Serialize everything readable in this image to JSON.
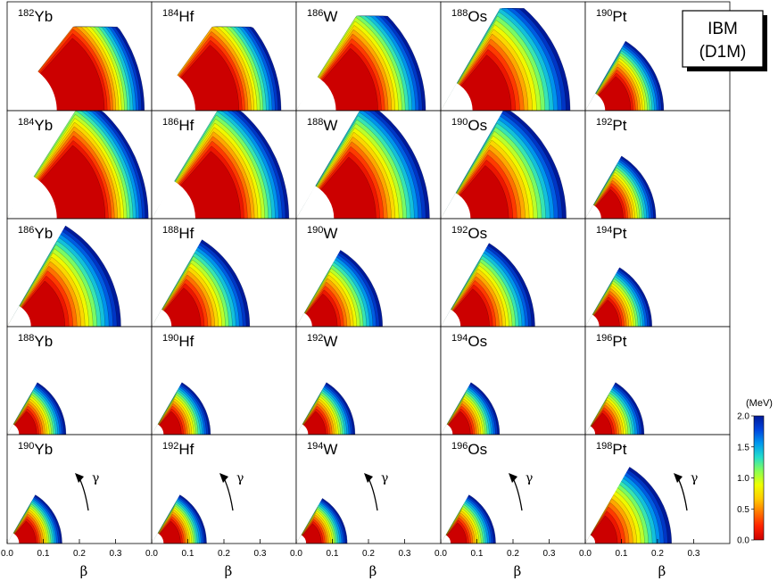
{
  "title_box": {
    "line1": "IBM",
    "line2": "(D1M)"
  },
  "x_axis": {
    "label": "β",
    "ticks": [
      "0.0",
      "0.1",
      "0.2",
      "0.3"
    ],
    "range": [
      0.0,
      0.4
    ]
  },
  "colorbar": {
    "unit": "(MeV)",
    "ticks": [
      "2.0",
      "1.5",
      "1.0",
      "0.5",
      "0.0"
    ],
    "range": [
      0.0,
      2.0
    ],
    "colormap": [
      "#cc0000",
      "#ff2200",
      "#ff7700",
      "#ffcc00",
      "#eeff00",
      "#88ff55",
      "#22ddcc",
      "#0099ee",
      "#0044dd",
      "#001a99"
    ]
  },
  "gamma_label": "γ",
  "chart_data": {
    "type": "heatmap",
    "description_of_axes": "polar (beta, gamma) plane, gamma 0-60 deg",
    "xlabel": "β",
    "colorbar_label": "(MeV)",
    "panels": [
      [
        {
          "mass": "182",
          "symbol": "Yb",
          "beta_min": 0.25,
          "beta_max": 0.35,
          "gamma_min": 0.3,
          "gamma_max": 0.6,
          "trunc_top": 0.82
        },
        {
          "mass": "184",
          "symbol": "Hf",
          "beta_min": 0.22,
          "beta_max": 0.33,
          "gamma_min": 0.3,
          "gamma_max": 0.6,
          "trunc_top": 0.82
        },
        {
          "mass": "186",
          "symbol": "W",
          "beta_min": 0.2,
          "beta_max": 0.33,
          "gamma_min": 0.3,
          "gamma_max": 0.65,
          "trunc_top": 0.92
        },
        {
          "mass": "188",
          "symbol": "Os",
          "beta_min": 0.16,
          "beta_max": 0.33,
          "gamma_min": 0.3,
          "gamma_max": 0.8,
          "trunc_top": 0.99
        },
        {
          "mass": "190",
          "symbol": "Pt",
          "beta_min": 0.1,
          "beta_max": 0.2,
          "gamma_min": 0.6,
          "gamma_max": 0.9,
          "trunc_top": 1.05
        }
      ],
      [
        {
          "mass": "184",
          "symbol": "Yb",
          "beta_min": 0.25,
          "beta_max": 0.36,
          "gamma_min": 0.3,
          "gamma_max": 0.9,
          "trunc_top": 1.05
        },
        {
          "mass": "186",
          "symbol": "Hf",
          "beta_min": 0.22,
          "beta_max": 0.35,
          "gamma_min": 0.3,
          "gamma_max": 0.9,
          "trunc_top": 1.05
        },
        {
          "mass": "188",
          "symbol": "W",
          "beta_min": 0.19,
          "beta_max": 0.34,
          "gamma_min": 0.3,
          "gamma_max": 0.85,
          "trunc_top": 1.05
        },
        {
          "mass": "190",
          "symbol": "Os",
          "beta_min": 0.15,
          "beta_max": 0.32,
          "gamma_min": 0.4,
          "gamma_max": 0.8,
          "trunc_top": 1.05
        },
        {
          "mass": "192",
          "symbol": "Pt",
          "beta_min": 0.08,
          "beta_max": 0.18,
          "gamma_min": 0.6,
          "gamma_max": 0.9,
          "trunc_top": 1.05
        }
      ],
      [
        {
          "mass": "186",
          "symbol": "Yb",
          "beta_min": 0.12,
          "beta_max": 0.29,
          "gamma_min": 0.5,
          "gamma_max": 0.8,
          "trunc_top": 1.05
        },
        {
          "mass": "188",
          "symbol": "Hf",
          "beta_min": 0.1,
          "beta_max": 0.25,
          "gamma_min": 0.55,
          "gamma_max": 0.85,
          "trunc_top": 1.05
        },
        {
          "mass": "190",
          "symbol": "W",
          "beta_min": 0.08,
          "beta_max": 0.22,
          "gamma_min": 0.6,
          "gamma_max": 0.85,
          "trunc_top": 1.05
        },
        {
          "mass": "192",
          "symbol": "Os",
          "beta_min": 0.1,
          "beta_max": 0.24,
          "gamma_min": 0.6,
          "gamma_max": 0.7,
          "trunc_top": 1.05
        },
        {
          "mass": "194",
          "symbol": "Pt",
          "beta_min": 0.07,
          "beta_max": 0.17,
          "gamma_min": 0.6,
          "gamma_max": 0.9,
          "trunc_top": 1.05
        }
      ],
      [
        {
          "mass": "188",
          "symbol": "Yb",
          "beta_min": 0.06,
          "beta_max": 0.15,
          "gamma_min": 0.6,
          "gamma_max": 0.9,
          "trunc_top": 1.05
        },
        {
          "mass": "190",
          "symbol": "Hf",
          "beta_min": 0.06,
          "beta_max": 0.15,
          "gamma_min": 0.6,
          "gamma_max": 0.9,
          "trunc_top": 1.05
        },
        {
          "mass": "192",
          "symbol": "W",
          "beta_min": 0.06,
          "beta_max": 0.15,
          "gamma_min": 0.6,
          "gamma_max": 0.9,
          "trunc_top": 1.05
        },
        {
          "mass": "194",
          "symbol": "Os",
          "beta_min": 0.06,
          "beta_max": 0.15,
          "gamma_min": 0.6,
          "gamma_max": 0.9,
          "trunc_top": 1.05
        },
        {
          "mass": "196",
          "symbol": "Pt",
          "beta_min": 0.05,
          "beta_max": 0.15,
          "gamma_min": 0.6,
          "gamma_max": 0.9,
          "trunc_top": 1.05
        }
      ],
      [
        {
          "mass": "190",
          "symbol": "Yb",
          "beta_min": 0.06,
          "beta_max": 0.14,
          "gamma_min": 0.6,
          "gamma_max": 0.9,
          "trunc_top": 1.05
        },
        {
          "mass": "192",
          "symbol": "Hf",
          "beta_min": 0.06,
          "beta_max": 0.14,
          "gamma_min": 0.6,
          "gamma_max": 0.9,
          "trunc_top": 1.05
        },
        {
          "mass": "194",
          "symbol": "W",
          "beta_min": 0.05,
          "beta_max": 0.13,
          "gamma_min": 0.6,
          "gamma_max": 0.9,
          "trunc_top": 1.05
        },
        {
          "mass": "196",
          "symbol": "Os",
          "beta_min": 0.05,
          "beta_max": 0.14,
          "gamma_min": 0.6,
          "gamma_max": 0.9,
          "trunc_top": 1.05
        },
        {
          "mass": "198",
          "symbol": "Pt",
          "beta_min": 0.05,
          "beta_max": 0.22,
          "gamma_min": 0.6,
          "gamma_max": 0.9,
          "trunc_top": 1.05
        }
      ]
    ]
  }
}
